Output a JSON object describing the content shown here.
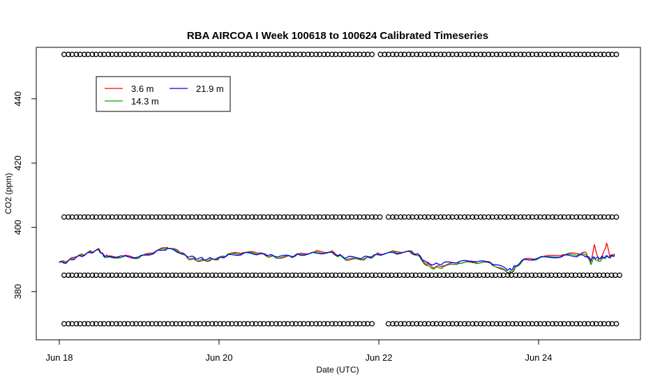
{
  "chart_data": {
    "type": "line",
    "title": "RBA AIRCOA I  Week 100618 to 100624  Calibrated Timeseries",
    "xlabel": "Date (UTC)",
    "ylabel": "CO2 (ppm)",
    "xlim": [
      0,
      7.35
    ],
    "ylim": [
      365,
      456
    ],
    "x_ticks": [
      {
        "value": 0,
        "label": "Jun 18"
      },
      {
        "value": 2,
        "label": "Jun 20"
      },
      {
        "value": 4,
        "label": "Jun 22"
      },
      {
        "value": 6,
        "label": "Jun 24"
      }
    ],
    "y_ticks": [
      {
        "value": 380,
        "label": "380"
      },
      {
        "value": 400,
        "label": "400"
      },
      {
        "value": 420,
        "label": "420"
      },
      {
        "value": 440,
        "label": "440"
      }
    ],
    "legend_position": "top-left",
    "series": [
      {
        "name": "3.6 m",
        "color": "#ff0000",
        "x": [
          0,
          0.1,
          0.2,
          0.3,
          0.4,
          0.5,
          0.55,
          0.6,
          0.8,
          1.0,
          1.2,
          1.35,
          1.5,
          1.6,
          1.7,
          1.8,
          1.9,
          2.0,
          2.1,
          2.3,
          2.5,
          2.6,
          2.7,
          2.9,
          3.0,
          3.2,
          3.4,
          3.5,
          3.6,
          3.8,
          3.9,
          4.0,
          4.2,
          4.4,
          4.5,
          4.6,
          4.7,
          4.8,
          5.0,
          5.2,
          5.4,
          5.6,
          5.65,
          5.7,
          5.8,
          6.0,
          6.3,
          6.5,
          6.6,
          6.65,
          6.7,
          6.75,
          6.8,
          6.85,
          6.9,
          6.95
        ],
        "y": [
          389,
          389.5,
          390.8,
          391.5,
          392.5,
          393.2,
          391.5,
          390.8,
          391,
          390.6,
          392.5,
          393.8,
          392.5,
          390.5,
          389.8,
          389.6,
          389.8,
          390.3,
          391.5,
          392.2,
          392,
          391.2,
          390.6,
          390.9,
          391.7,
          392.4,
          392.5,
          391.2,
          389.8,
          390,
          390.7,
          391.8,
          392.5,
          392.6,
          391.3,
          388.5,
          387.5,
          388,
          389,
          389.2,
          389,
          386,
          385.7,
          387,
          389.8,
          390.5,
          391.5,
          391.8,
          392,
          389,
          394.5,
          390,
          391,
          395,
          390.5,
          391.8
        ]
      },
      {
        "name": "14.3 m",
        "color": "#00a000",
        "x": [
          0,
          0.1,
          0.2,
          0.3,
          0.4,
          0.5,
          0.55,
          0.6,
          0.8,
          1.0,
          1.2,
          1.35,
          1.5,
          1.6,
          1.7,
          1.8,
          1.9,
          2.0,
          2.1,
          2.3,
          2.5,
          2.6,
          2.7,
          2.9,
          3.0,
          3.2,
          3.4,
          3.5,
          3.6,
          3.8,
          3.9,
          4.0,
          4.2,
          4.4,
          4.5,
          4.6,
          4.7,
          4.8,
          5.0,
          5.2,
          5.4,
          5.6,
          5.65,
          5.7,
          5.8,
          6.0,
          6.3,
          6.5,
          6.6,
          6.65,
          6.7,
          6.75,
          6.8,
          6.85,
          6.9,
          6.95
        ],
        "y": [
          389,
          389.3,
          390.6,
          391.3,
          392.3,
          393,
          391.2,
          390.6,
          390.8,
          390.5,
          392.4,
          393.6,
          392.3,
          390.6,
          390,
          389.8,
          390,
          390.4,
          391.4,
          392,
          391.8,
          391,
          390.7,
          390.8,
          391.6,
          392.2,
          392.3,
          391,
          390,
          390.1,
          390.5,
          391.6,
          392.3,
          392.4,
          391,
          388,
          387.2,
          387.6,
          388.8,
          389,
          388.8,
          386.2,
          386,
          387.2,
          389.6,
          390.3,
          391.2,
          391.5,
          391.4,
          388.6,
          390.5,
          389.4,
          390.3,
          390.8,
          390.8,
          391.4
        ]
      },
      {
        "name": "21.9 m",
        "color": "#0000ff",
        "x": [
          0,
          0.1,
          0.2,
          0.3,
          0.4,
          0.5,
          0.55,
          0.6,
          0.8,
          1.0,
          1.2,
          1.35,
          1.5,
          1.6,
          1.7,
          1.8,
          1.9,
          2.0,
          2.1,
          2.3,
          2.5,
          2.6,
          2.7,
          2.9,
          3.0,
          3.2,
          3.4,
          3.5,
          3.6,
          3.8,
          3.9,
          4.0,
          4.2,
          4.4,
          4.5,
          4.6,
          4.7,
          4.8,
          5.0,
          5.2,
          5.4,
          5.6,
          5.65,
          5.7,
          5.8,
          6.0,
          6.3,
          6.5,
          6.6,
          6.65,
          6.7,
          6.75,
          6.8,
          6.85,
          6.9,
          6.95
        ],
        "y": [
          389,
          389.2,
          390.5,
          391.2,
          392.2,
          392.8,
          391.3,
          391,
          391,
          390.8,
          392.2,
          393.4,
          392.2,
          391,
          390.5,
          390.2,
          390.3,
          390.5,
          391.2,
          391.8,
          391.8,
          391.3,
          391,
          391,
          391.5,
          392,
          392.2,
          391.3,
          390.6,
          390.6,
          390.8,
          391.5,
          392,
          392.2,
          391.4,
          389,
          388.5,
          388.8,
          389.3,
          389.4,
          389,
          387,
          386.8,
          387.8,
          389.8,
          390.5,
          391,
          391.2,
          391,
          390,
          390.6,
          390.4,
          390.8,
          391,
          391,
          391.4
        ]
      },
      {
        "name": "",
        "color": "#000000",
        "marker": "circle",
        "note_hidden": false,
        "x": [
          0.06,
          0.16,
          0.26,
          0.36,
          0.46,
          0.56,
          0.66,
          0.76,
          0.86,
          0.96,
          1.06,
          1.16,
          1.26,
          1.36,
          1.46,
          1.56,
          1.66,
          1.76,
          1.86,
          1.96,
          2.06,
          2.16,
          2.26,
          2.36,
          2.46,
          2.56,
          2.66,
          2.76,
          2.86,
          2.96,
          3.06,
          3.16,
          3.26,
          3.36,
          3.46,
          3.56,
          3.66,
          3.76,
          3.86,
          4.02,
          4.12,
          4.22,
          4.32,
          4.42,
          4.52,
          4.62,
          4.72,
          4.82,
          4.92,
          5.02,
          5.12,
          5.22,
          5.32,
          5.42,
          5.52,
          5.62,
          5.72,
          5.82,
          5.92,
          6.02,
          6.12,
          6.22,
          6.32,
          6.42,
          6.52,
          6.62,
          6.72,
          6.82,
          6.92
        ],
        "y": [
          453.8,
          453.8,
          453.8,
          453.8,
          453.8,
          453.8,
          453.8,
          453.8,
          453.8,
          453.8,
          453.8,
          453.8,
          453.8,
          453.8,
          453.8,
          453.8,
          453.8,
          453.8,
          453.8,
          453.8,
          453.8,
          453.8,
          453.8,
          453.8,
          453.8,
          453.8,
          453.8,
          453.8,
          453.8,
          453.8,
          453.8,
          453.8,
          453.8,
          453.8,
          453.8,
          453.8,
          453.8,
          453.8,
          453.8,
          453.8,
          453.8,
          453.8,
          453.8,
          453.8,
          453.8,
          453.8,
          453.8,
          453.8,
          453.8,
          453.8,
          453.8,
          453.8,
          453.8,
          453.8,
          453.8,
          453.8,
          453.8,
          453.8,
          453.8,
          453.8,
          453.8,
          453.8,
          453.8,
          453.8,
          453.8,
          453.8,
          453.8,
          453.8,
          453.8
        ]
      },
      {
        "name": "",
        "color": "#000000",
        "marker": "circle",
        "x": [
          0.06,
          0.16,
          0.26,
          0.36,
          0.46,
          0.56,
          0.66,
          0.76,
          0.86,
          0.96,
          1.06,
          1.16,
          1.26,
          1.36,
          1.46,
          1.56,
          1.66,
          1.76,
          1.86,
          1.96,
          2.06,
          2.16,
          2.26,
          2.36,
          2.46,
          2.56,
          2.66,
          2.76,
          2.86,
          2.96,
          3.06,
          3.16,
          3.26,
          3.36,
          3.46,
          3.56,
          3.66,
          3.76,
          3.86,
          3.96,
          4.12,
          4.22,
          4.32,
          4.42,
          4.52,
          4.62,
          4.72,
          4.82,
          4.92,
          5.02,
          5.12,
          5.22,
          5.32,
          5.42,
          5.52,
          5.62,
          5.72,
          5.82,
          5.92,
          6.02,
          6.12,
          6.22,
          6.32,
          6.42,
          6.52,
          6.62,
          6.72,
          6.82,
          6.92
        ],
        "y": [
          403.2,
          403.2,
          403.2,
          403.2,
          403.2,
          403.2,
          403.2,
          403.2,
          403.2,
          403.2,
          403.2,
          403.2,
          403.2,
          403.2,
          403.2,
          403.2,
          403.2,
          403.2,
          403.2,
          403.2,
          403.2,
          403.2,
          403.2,
          403.2,
          403.2,
          403.2,
          403.2,
          403.2,
          403.2,
          403.2,
          403.2,
          403.2,
          403.2,
          403.2,
          403.2,
          403.2,
          403.2,
          403.2,
          403.2,
          403.2,
          403.2,
          403.2,
          403.2,
          403.2,
          403.2,
          403.2,
          403.2,
          403.2,
          403.2,
          403.2,
          403.2,
          403.2,
          403.2,
          403.2,
          403.2,
          403.2,
          403.2,
          403.2,
          403.2,
          403.2,
          403.2,
          403.2,
          403.2,
          403.2,
          403.2,
          403.2,
          403.2,
          403.2,
          403.2
        ]
      },
      {
        "name": "",
        "color": "#000000",
        "marker": "circle",
        "x": [
          0.06,
          0.16,
          0.26,
          0.36,
          0.46,
          0.56,
          0.66,
          0.76,
          0.86,
          0.96,
          1.06,
          1.16,
          1.26,
          1.36,
          1.46,
          1.56,
          1.66,
          1.76,
          1.86,
          1.96,
          2.06,
          2.16,
          2.26,
          2.36,
          2.46,
          2.56,
          2.66,
          2.76,
          2.86,
          2.96,
          3.06,
          3.16,
          3.26,
          3.36,
          3.46,
          3.56,
          3.66,
          3.76,
          3.86,
          3.96,
          4.06,
          4.16,
          4.26,
          4.36,
          4.46,
          4.56,
          4.66,
          4.76,
          4.86,
          4.96,
          5.06,
          5.16,
          5.26,
          5.36,
          5.46,
          5.56,
          5.66,
          5.76,
          5.86,
          5.96,
          6.06,
          6.16,
          6.26,
          6.36,
          6.46,
          6.56,
          6.66,
          6.76,
          6.86,
          6.96
        ],
        "y": [
          385.1,
          385.1,
          385.1,
          385.1,
          385.1,
          385.1,
          385.1,
          385.1,
          385.1,
          385.1,
          385.1,
          385.1,
          385.1,
          385.1,
          385.1,
          385.1,
          385.1,
          385.1,
          385.1,
          385.1,
          385.1,
          385.1,
          385.1,
          385.1,
          385.1,
          385.1,
          385.1,
          385.1,
          385.1,
          385.1,
          385.1,
          385.1,
          385.1,
          385.1,
          385.1,
          385.1,
          385.1,
          385.1,
          385.1,
          385.1,
          385.1,
          385.1,
          385.1,
          385.1,
          385.1,
          385.1,
          385.1,
          385.1,
          385.1,
          385.1,
          385.1,
          385.1,
          385.1,
          385.1,
          385.1,
          385.1,
          385.1,
          385.1,
          385.1,
          385.1,
          385.1,
          385.1,
          385.1,
          385.1,
          385.1,
          385.1,
          385.1,
          385.1,
          385.1,
          385.1
        ]
      },
      {
        "name": "",
        "color": "#000000",
        "marker": "circle",
        "x": [
          0.06,
          0.16,
          0.26,
          0.36,
          0.46,
          0.56,
          0.66,
          0.76,
          0.86,
          0.96,
          1.06,
          1.16,
          1.26,
          1.36,
          1.46,
          1.56,
          1.66,
          1.76,
          1.86,
          1.96,
          2.06,
          2.16,
          2.26,
          2.36,
          2.46,
          2.56,
          2.66,
          2.76,
          2.86,
          2.96,
          3.06,
          3.16,
          3.26,
          3.36,
          3.46,
          3.56,
          3.66,
          3.76,
          3.86,
          4.12,
          4.22,
          4.32,
          4.42,
          4.52,
          4.62,
          4.72,
          4.82,
          4.92,
          5.02,
          5.12,
          5.22,
          5.32,
          5.42,
          5.52,
          5.62,
          5.72,
          5.82,
          5.92,
          6.02,
          6.12,
          6.22,
          6.32,
          6.42,
          6.52,
          6.62,
          6.72,
          6.82,
          6.92
        ],
        "y": [
          370,
          370,
          370,
          370,
          370,
          370,
          370,
          370,
          370,
          370,
          370,
          370,
          370,
          370,
          370,
          370,
          370,
          370,
          370,
          370,
          370,
          370,
          370,
          370,
          370,
          370,
          370,
          370,
          370,
          370,
          370,
          370,
          370,
          370,
          370,
          370,
          370,
          370,
          370,
          370,
          370,
          370,
          370,
          370,
          370,
          370,
          370,
          370,
          370,
          370,
          370,
          370,
          370,
          370,
          370,
          370,
          370,
          370,
          370,
          370,
          370,
          370,
          370,
          370,
          370,
          370,
          370,
          370
        ]
      }
    ]
  }
}
